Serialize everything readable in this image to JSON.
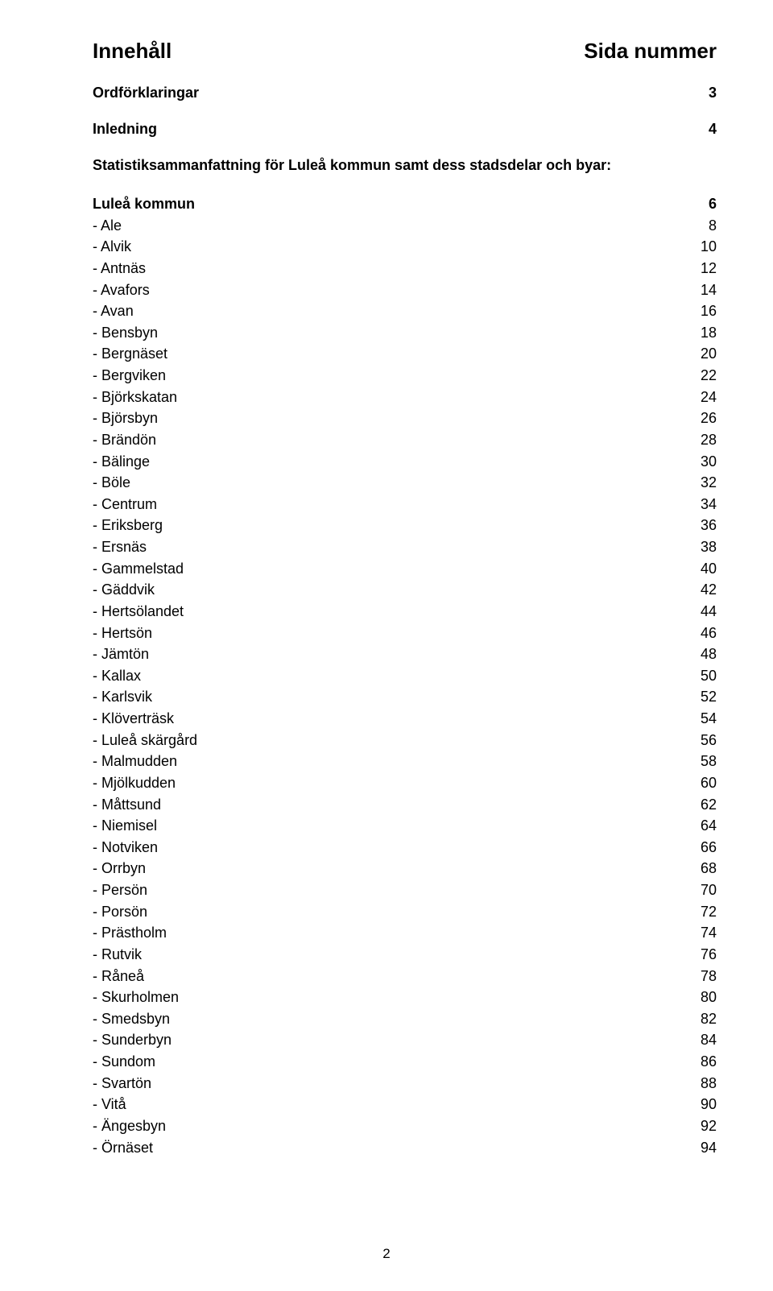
{
  "header": {
    "left": "Innehåll",
    "right": "Sida nummer"
  },
  "sub_rows": [
    {
      "label": "Ordförklaringar",
      "page": "3"
    },
    {
      "label": "Inledning",
      "page": "4"
    }
  ],
  "intro_line": "Statistiksammanfattning för Luleå kommun samt dess stadsdelar och byar:",
  "toc": [
    {
      "label": "Luleå kommun",
      "page": "6",
      "bold": true
    },
    {
      "label": "- Ale",
      "page": "8"
    },
    {
      "label": "- Alvik",
      "page": "10"
    },
    {
      "label": "- Antnäs",
      "page": "12"
    },
    {
      "label": "- Avafors",
      "page": "14"
    },
    {
      "label": "- Avan",
      "page": "16"
    },
    {
      "label": "- Bensbyn",
      "page": "18"
    },
    {
      "label": "- Bergnäset",
      "page": "20"
    },
    {
      "label": "- Bergviken",
      "page": "22"
    },
    {
      "label": "- Björkskatan",
      "page": "24"
    },
    {
      "label": "- Björsbyn",
      "page": "26"
    },
    {
      "label": "- Brändön",
      "page": "28"
    },
    {
      "label": "- Bälinge",
      "page": "30"
    },
    {
      "label": "- Böle",
      "page": "32"
    },
    {
      "label": "- Centrum",
      "page": "34"
    },
    {
      "label": "- Eriksberg",
      "page": "36"
    },
    {
      "label": "- Ersnäs",
      "page": "38"
    },
    {
      "label": "- Gammelstad",
      "page": "40"
    },
    {
      "label": "- Gäddvik",
      "page": "42"
    },
    {
      "label": "- Hertsölandet",
      "page": "44"
    },
    {
      "label": "- Hertsön",
      "page": "46"
    },
    {
      "label": "- Jämtön",
      "page": "48"
    },
    {
      "label": "- Kallax",
      "page": "50"
    },
    {
      "label": "- Karlsvik",
      "page": "52"
    },
    {
      "label": "- Klöverträsk",
      "page": "54"
    },
    {
      "label": "- Luleå skärgård",
      "page": "56"
    },
    {
      "label": "- Malmudden",
      "page": "58"
    },
    {
      "label": "- Mjölkudden",
      "page": "60"
    },
    {
      "label": "- Måttsund",
      "page": "62"
    },
    {
      "label": "- Niemisel",
      "page": "64"
    },
    {
      "label": "- Notviken",
      "page": "66"
    },
    {
      "label": "- Orrbyn",
      "page": "68"
    },
    {
      "label": "- Persön",
      "page": "70"
    },
    {
      "label": "- Porsön",
      "page": "72"
    },
    {
      "label": "- Prästholm",
      "page": "74"
    },
    {
      "label": "- Rutvik",
      "page": "76"
    },
    {
      "label": "- Råneå",
      "page": "78"
    },
    {
      "label": "- Skurholmen",
      "page": "80"
    },
    {
      "label": "- Smedsbyn",
      "page": "82"
    },
    {
      "label": "- Sunderbyn",
      "page": "84"
    },
    {
      "label": "- Sundom",
      "page": "86"
    },
    {
      "label": "- Svartön",
      "page": "88"
    },
    {
      "label": "- Vitå",
      "page": "90"
    },
    {
      "label": "- Ängesbyn",
      "page": "92"
    },
    {
      "label": "- Örnäset",
      "page": "94"
    }
  ],
  "page_number": "2",
  "style": {
    "background_color": "#ffffff",
    "text_color": "#000000",
    "title_fontsize": 26,
    "body_fontsize": 18,
    "pagenum_fontsize": 17,
    "line_height": 1.48,
    "font_family": "Arial, Helvetica, sans-serif"
  }
}
